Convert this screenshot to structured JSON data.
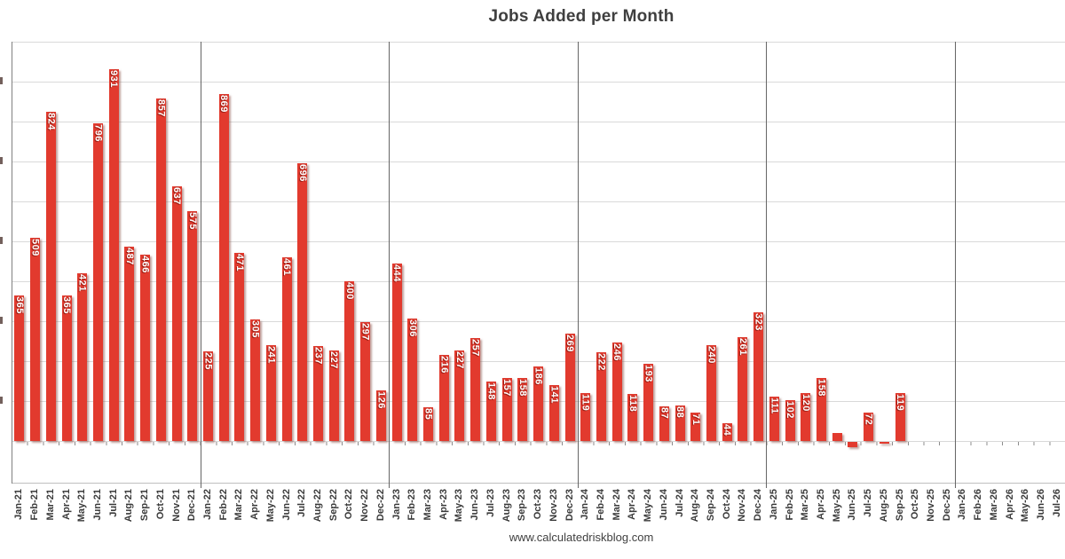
{
  "title": "Jobs Added per Month",
  "footer": "www.calculatedriskblog.com",
  "colors": {
    "bar": "#e23a2e",
    "bar_label": "#ffffff",
    "gridline": "#d9d9d9",
    "year_divider": "#666666",
    "axis": "#808080",
    "text": "#3f3f3f"
  },
  "chart_data": {
    "type": "bar",
    "title": "Jobs Added per Month",
    "xlabel": "",
    "ylabel": "",
    "ylim": [
      -100,
      1000
    ],
    "grid": true,
    "gridline_interval": 100,
    "legend": "none",
    "bar_color": "#e23a2e",
    "categories": [
      "Jan-21",
      "Feb-21",
      "Mar-21",
      "Apr-21",
      "May-21",
      "Jun-21",
      "Jul-21",
      "Aug-21",
      "Sep-21",
      "Oct-21",
      "Nov-21",
      "Dec-21",
      "Jan-22",
      "Feb-22",
      "Mar-22",
      "Apr-22",
      "May-22",
      "Jun-22",
      "Jul-22",
      "Aug-22",
      "Sep-22",
      "Oct-22",
      "Nov-22",
      "Dec-22",
      "Jan-23",
      "Feb-23",
      "Mar-23",
      "Apr-23",
      "May-23",
      "Jun-23",
      "Jul-23",
      "Aug-23",
      "Sep-23",
      "Oct-23",
      "Nov-23",
      "Dec-23",
      "Jan-24",
      "Feb-24",
      "Mar-24",
      "Apr-24",
      "May-24",
      "Jun-24",
      "Jul-24",
      "Aug-24",
      "Sep-24",
      "Oct-24",
      "Nov-24",
      "Dec-24",
      "Jan-25",
      "Feb-25",
      "Mar-25",
      "Apr-25",
      "May-25",
      "Jun-25",
      "Jul-25",
      "Aug-25",
      "Sep-25",
      "Oct-25",
      "Nov-25",
      "Dec-25",
      "Jan-26",
      "Feb-26",
      "Mar-26",
      "Apr-26",
      "May-26",
      "Jun-26",
      "Jul-26"
    ],
    "values": [
      365,
      509,
      824,
      365,
      421,
      796,
      931,
      487,
      466,
      857,
      637,
      575,
      225,
      869,
      471,
      305,
      241,
      461,
      696,
      237,
      227,
      400,
      297,
      126,
      444,
      306,
      85,
      216,
      227,
      257,
      148,
      157,
      158,
      186,
      141,
      269,
      119,
      222,
      246,
      118,
      193,
      87,
      88,
      71,
      240,
      44,
      261,
      323,
      111,
      102,
      120,
      158,
      19,
      -13,
      72,
      -4,
      119,
      null,
      null,
      null,
      null,
      null,
      null,
      null,
      null,
      null,
      null
    ],
    "unlabeled_points": [
      "May-25",
      "Jun-25",
      "Aug-25"
    ],
    "year_divider_after": [
      "Dec-21",
      "Dec-22",
      "Dec-23",
      "Dec-24",
      "Dec-25"
    ]
  }
}
